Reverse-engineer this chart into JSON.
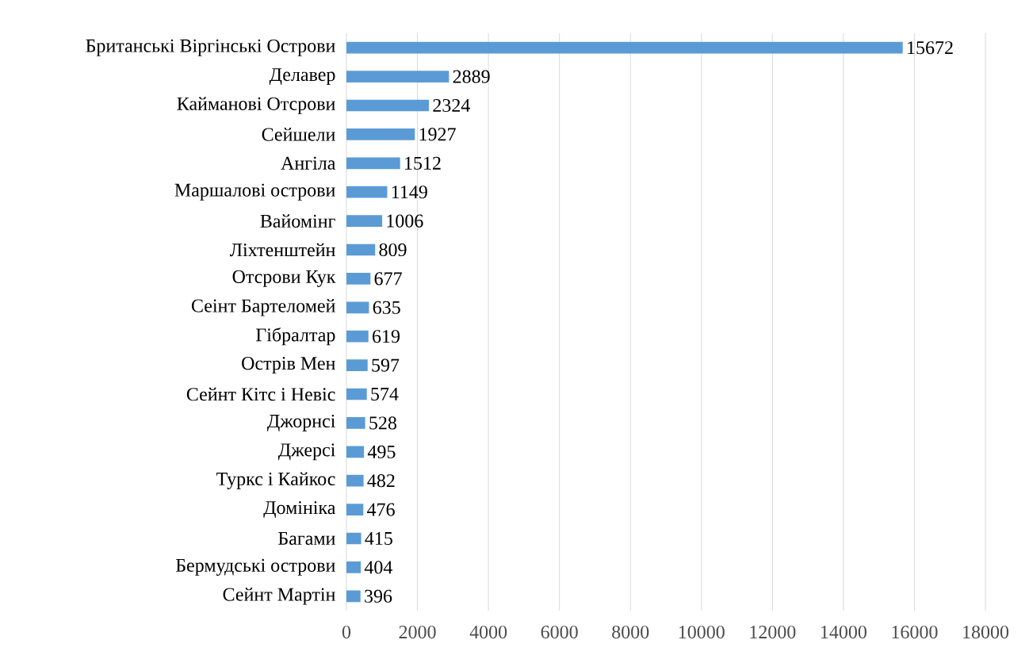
{
  "chart_data": {
    "type": "bar",
    "orientation": "horizontal",
    "categories": [
      "Британські Віргінські Острови",
      "Делавер",
      "Кайманові Отсрови",
      "Сейшели",
      "Ангіла",
      "Маршалові острови",
      "Вайомінг",
      "Ліхтенштейн",
      "Отсрови Кук",
      "Сеінт Бартеломей",
      "Гібралтар",
      "Острів Мен",
      "Сейнт Кітс і Невіс",
      "Джорнсі",
      "Джерсі",
      "Туркс і Кайкос",
      "Домініка",
      "Багами",
      "Бермудські острови",
      "Сейнт Мартін"
    ],
    "values": [
      15672,
      2889,
      2324,
      1927,
      1512,
      1149,
      1006,
      809,
      677,
      635,
      619,
      597,
      574,
      528,
      495,
      482,
      476,
      415,
      404,
      396
    ],
    "color": "#5b9bd5",
    "data_labels": true,
    "xlim": [
      0,
      18000
    ],
    "xticks": [
      0,
      2000,
      4000,
      6000,
      8000,
      10000,
      12000,
      14000,
      16000,
      18000
    ],
    "grid": "x"
  }
}
